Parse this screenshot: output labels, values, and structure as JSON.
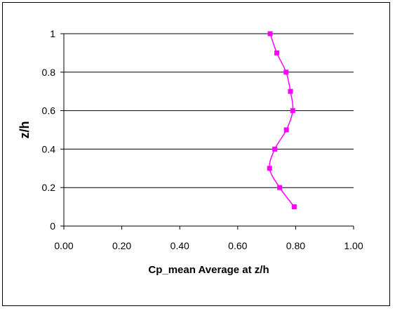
{
  "chart_data": {
    "type": "line",
    "title": "",
    "xlabel": "Cp_mean Average at z/h",
    "ylabel": "z/h",
    "xlim": [
      0,
      1
    ],
    "ylim": [
      0,
      1
    ],
    "x_ticks": [
      "0.00",
      "0.20",
      "0.40",
      "0.60",
      "0.80",
      "1.00"
    ],
    "y_ticks": [
      "0",
      "0.2",
      "0.4",
      "0.6",
      "0.8",
      "1"
    ],
    "grid": "horizontal major gridlines",
    "legend": "none",
    "smoothed": true,
    "marker": "square",
    "series": [
      {
        "color": "#ff00ff",
        "x": [
          0.795,
          0.745,
          0.71,
          0.728,
          0.768,
          0.79,
          0.782,
          0.767,
          0.735,
          0.712
        ],
        "y": [
          0.1,
          0.2,
          0.3,
          0.4,
          0.5,
          0.6,
          0.7,
          0.8,
          0.9,
          1.0
        ]
      }
    ]
  }
}
